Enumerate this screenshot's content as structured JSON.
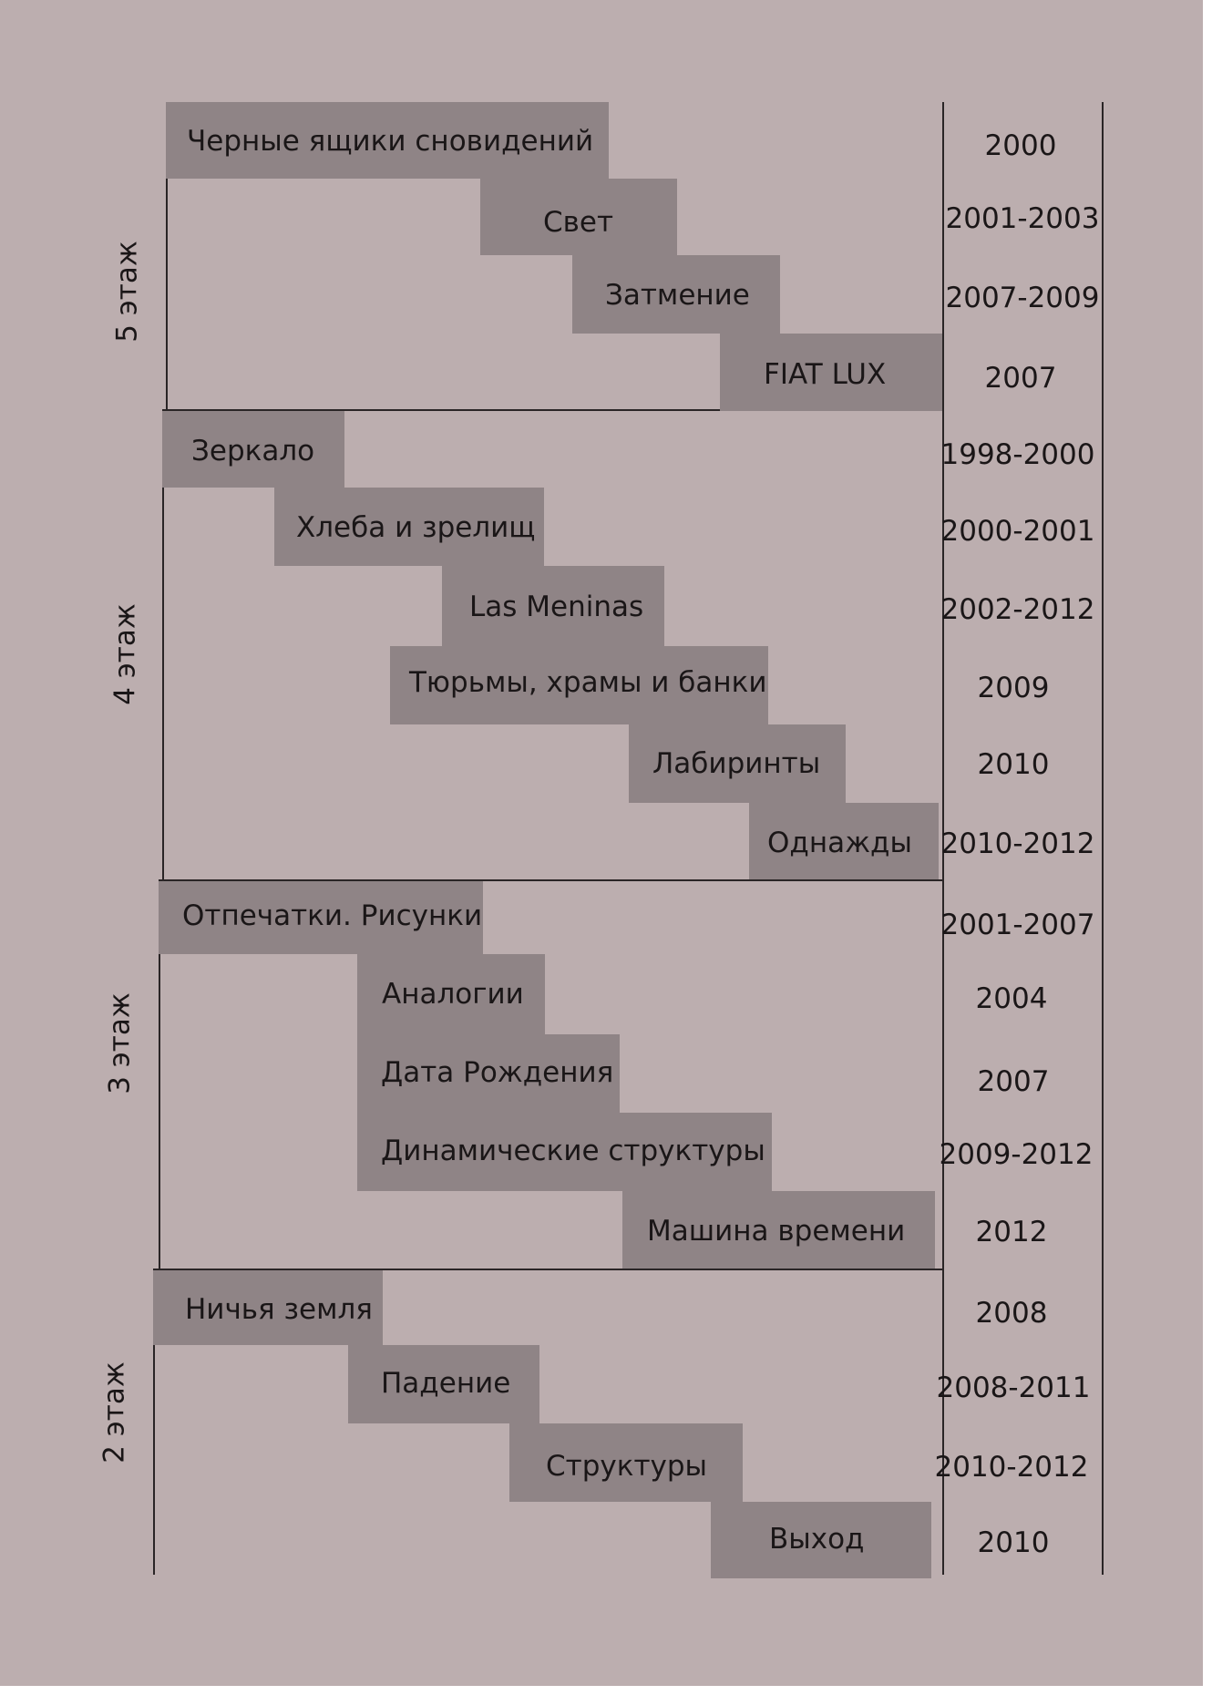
{
  "colors": {
    "background": "#bcaeaf",
    "block": "#8f8486",
    "line": "#2a2526",
    "text": "#1a1617"
  },
  "floors": [
    {
      "name": "5 этаж",
      "items": [
        {
          "label": "Черные ящики сновидений",
          "years": "2000"
        },
        {
          "label": "Свет",
          "years": "2001-2003"
        },
        {
          "label": "Затмение",
          "years": "2007-2009"
        },
        {
          "label": "FIAT LUX",
          "years": "2007"
        }
      ]
    },
    {
      "name": "4 этаж",
      "items": [
        {
          "label": "Зеркало",
          "years": "1998-2000"
        },
        {
          "label": "Хлеба и зрелищ",
          "years": "2000-2001"
        },
        {
          "label": "Las Meninas",
          "years": "2002-2012"
        },
        {
          "label": "Тюрьмы, храмы и банки",
          "years": "2009"
        },
        {
          "label": "Лабиринты",
          "years": "2010"
        },
        {
          "label": "Однажды",
          "years": "2010-2012"
        }
      ]
    },
    {
      "name": "3 этаж",
      "items": [
        {
          "label": "Отпечатки. Рисунки",
          "years": "2001-2007"
        },
        {
          "label": "Аналогии",
          "years": "2004"
        },
        {
          "label": "Дата Рождения",
          "years": "2007"
        },
        {
          "label": "Динамические структуры",
          "years": "2009-2012"
        },
        {
          "label": "Машина времени",
          "years": "2012"
        }
      ]
    },
    {
      "name": "2 этаж",
      "items": [
        {
          "label": "Ничья земля",
          "years": "2008"
        },
        {
          "label": "Падение",
          "years": "2008-2011"
        },
        {
          "label": "Структуры",
          "years": "2010-2012"
        },
        {
          "label": "Выход",
          "years": "2010"
        }
      ]
    }
  ]
}
